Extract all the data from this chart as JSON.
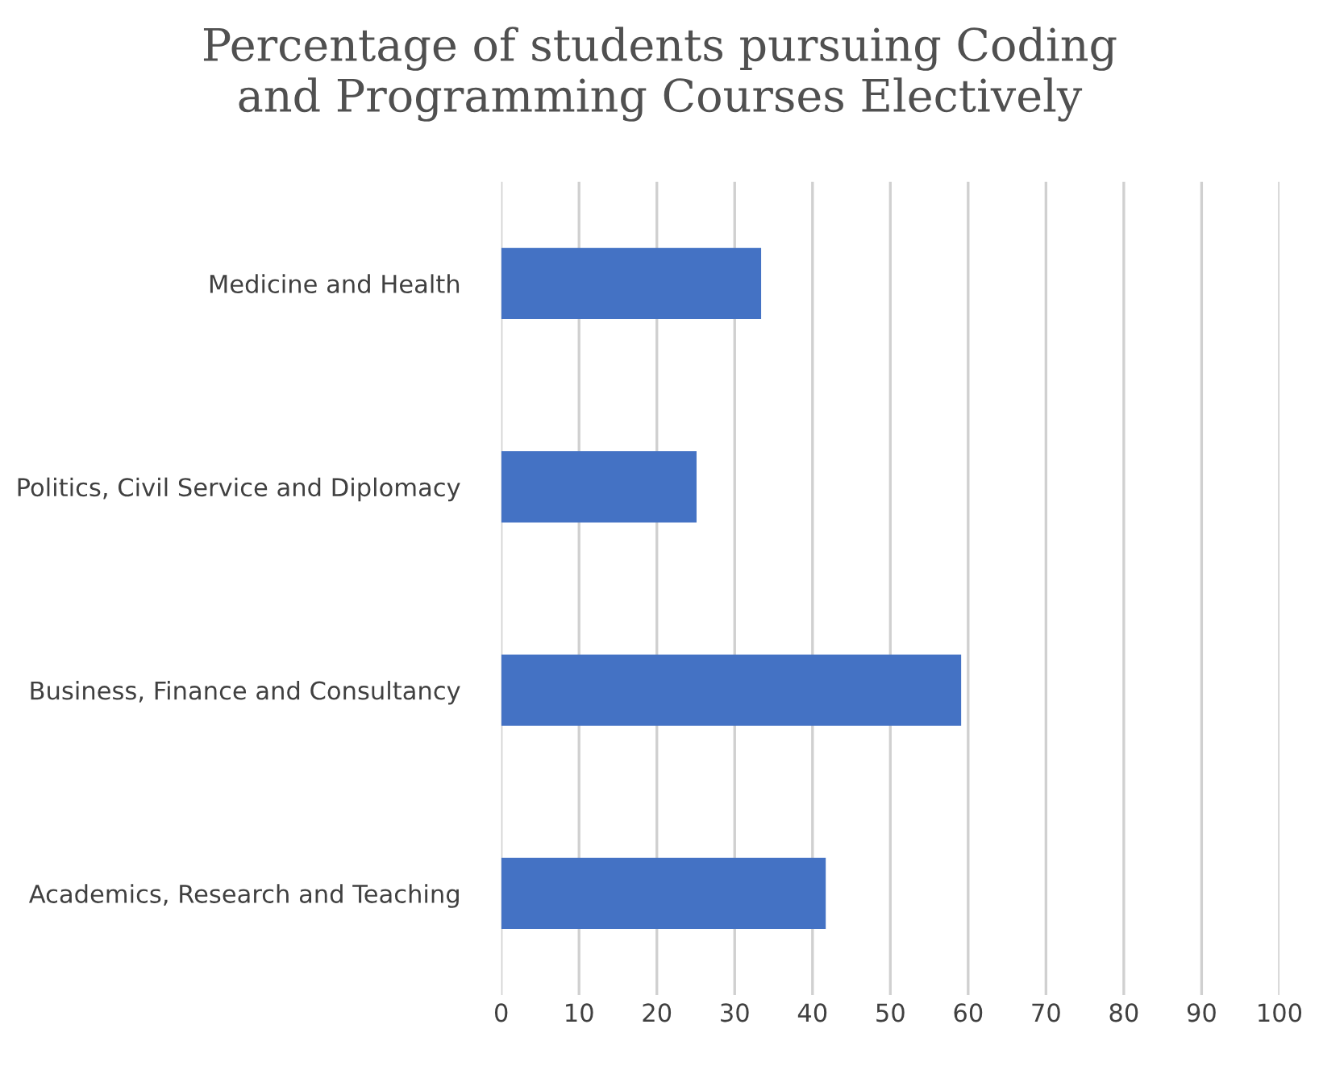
{
  "chart_data": {
    "type": "bar",
    "orientation": "horizontal",
    "title": "Percentage of students pursuing Coding\nand Programming Courses Electively",
    "categories": [
      "Medicine and Health",
      "Politics, Civil Service and Diplomacy",
      "Business, Finance and Consultancy",
      "Academics, Research and Teaching"
    ],
    "values": [
      33.4,
      25.1,
      59.1,
      41.7
    ],
    "color": "#4472c4",
    "xlim": [
      0,
      100
    ],
    "xticks": [
      0,
      10,
      20,
      30,
      40,
      50,
      60,
      70,
      80,
      90,
      100
    ],
    "grid": "x"
  }
}
